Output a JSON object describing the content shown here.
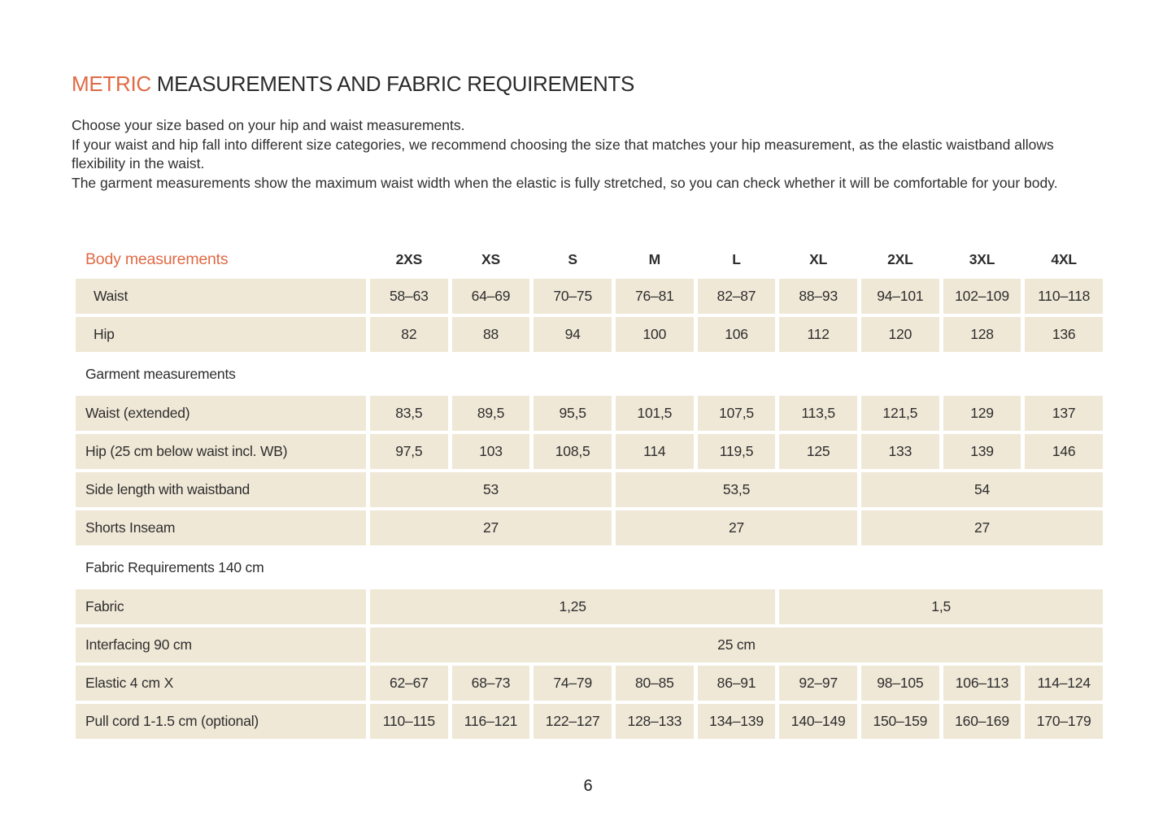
{
  "colors": {
    "accent": "#e06a45",
    "cell_bg": "#f0e8d7",
    "text": "#2e2e2e"
  },
  "page": {
    "number": "6"
  },
  "title": {
    "highlight": "METRIC",
    "rest": " MEASUREMENTS AND FABRIC REQUIREMENTS"
  },
  "intro": {
    "p1": "Choose your size based on your hip and waist measurements.",
    "p2": "If your waist and hip fall into different size categories, we recommend choosing the size that matches your hip measurement, as the elastic waistband allows flexibility in the waist.",
    "p3": "The garment measurements show the maximum waist width when the elastic is fully stretched, so you can check whether it will be comfortable for your body."
  },
  "table": {
    "header_label": "Body measurements",
    "sizes": [
      "2XS",
      "XS",
      "S",
      "M",
      "L",
      "XL",
      "2XL",
      "3XL",
      "4XL"
    ],
    "rows": [
      {
        "kind": "data",
        "label": "Waist",
        "indent": true,
        "cells": [
          {
            "t": "58–63",
            "s": 1
          },
          {
            "t": "64–69",
            "s": 1
          },
          {
            "t": "70–75",
            "s": 1
          },
          {
            "t": "76–81",
            "s": 1
          },
          {
            "t": "82–87",
            "s": 1
          },
          {
            "t": "88–93",
            "s": 1
          },
          {
            "t": "94–101",
            "s": 1
          },
          {
            "t": "102–109",
            "s": 1
          },
          {
            "t": "110–118",
            "s": 1
          }
        ]
      },
      {
        "kind": "data",
        "label": "Hip",
        "indent": true,
        "cells": [
          {
            "t": "82",
            "s": 1
          },
          {
            "t": "88",
            "s": 1
          },
          {
            "t": "94",
            "s": 1
          },
          {
            "t": "100",
            "s": 1
          },
          {
            "t": "106",
            "s": 1
          },
          {
            "t": "112",
            "s": 1
          },
          {
            "t": "120",
            "s": 1
          },
          {
            "t": "128",
            "s": 1
          },
          {
            "t": "136",
            "s": 1
          }
        ]
      },
      {
        "kind": "section",
        "label": "Garment measurements"
      },
      {
        "kind": "data",
        "label": "Waist (extended)",
        "cells": [
          {
            "t": "83,5",
            "s": 1
          },
          {
            "t": "89,5",
            "s": 1
          },
          {
            "t": "95,5",
            "s": 1
          },
          {
            "t": "101,5",
            "s": 1
          },
          {
            "t": "107,5",
            "s": 1
          },
          {
            "t": "113,5",
            "s": 1
          },
          {
            "t": "121,5",
            "s": 1
          },
          {
            "t": "129",
            "s": 1
          },
          {
            "t": "137",
            "s": 1
          }
        ]
      },
      {
        "kind": "data",
        "label": "Hip (25 cm below waist incl. WB)",
        "cells": [
          {
            "t": "97,5",
            "s": 1
          },
          {
            "t": "103",
            "s": 1
          },
          {
            "t": "108,5",
            "s": 1
          },
          {
            "t": "114",
            "s": 1
          },
          {
            "t": "119,5",
            "s": 1
          },
          {
            "t": "125",
            "s": 1
          },
          {
            "t": "133",
            "s": 1
          },
          {
            "t": "139",
            "s": 1
          },
          {
            "t": "146",
            "s": 1
          }
        ]
      },
      {
        "kind": "data",
        "label": "Side length with waistband",
        "cells": [
          {
            "t": "53",
            "s": 3
          },
          {
            "t": "53,5",
            "s": 3
          },
          {
            "t": "54",
            "s": 3
          }
        ]
      },
      {
        "kind": "data",
        "label": "Shorts Inseam",
        "cells": [
          {
            "t": "27",
            "s": 3
          },
          {
            "t": "27",
            "s": 3
          },
          {
            "t": "27",
            "s": 3
          }
        ]
      },
      {
        "kind": "section",
        "label": "Fabric Requirements 140 cm"
      },
      {
        "kind": "data",
        "label": "Fabric",
        "cells": [
          {
            "t": "1,25",
            "s": 5
          },
          {
            "t": "1,5",
            "s": 4
          }
        ]
      },
      {
        "kind": "data",
        "label": "Interfacing 90 cm",
        "cells": [
          {
            "t": "25 cm",
            "s": 9
          }
        ]
      },
      {
        "kind": "data",
        "label": "Elastic 4 cm X",
        "cells": [
          {
            "t": "62–67",
            "s": 1
          },
          {
            "t": "68–73",
            "s": 1
          },
          {
            "t": "74–79",
            "s": 1
          },
          {
            "t": "80–85",
            "s": 1
          },
          {
            "t": "86–91",
            "s": 1
          },
          {
            "t": "92–97",
            "s": 1
          },
          {
            "t": "98–105",
            "s": 1
          },
          {
            "t": "106–113",
            "s": 1
          },
          {
            "t": "114–124",
            "s": 1
          }
        ]
      },
      {
        "kind": "data",
        "label": "Pull cord 1-1.5 cm (optional)",
        "cells": [
          {
            "t": "110–115",
            "s": 1
          },
          {
            "t": "116–121",
            "s": 1
          },
          {
            "t": "122–127",
            "s": 1
          },
          {
            "t": "128–133",
            "s": 1
          },
          {
            "t": "134–139",
            "s": 1
          },
          {
            "t": "140–149",
            "s": 1
          },
          {
            "t": "150–159",
            "s": 1
          },
          {
            "t": "160–169",
            "s": 1
          },
          {
            "t": "170–179",
            "s": 1
          }
        ]
      }
    ]
  }
}
